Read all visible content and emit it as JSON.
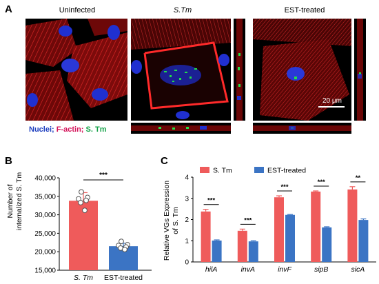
{
  "panel_a": {
    "letter": "A",
    "titles": [
      "Uninfected",
      "S.Tm",
      "EST-treated"
    ],
    "scalebar_label": "20 μm",
    "legend": [
      {
        "text": "Nuclei;",
        "color": "#1f3fbf"
      },
      {
        "text": "F-actin;",
        "color": "#d4145a"
      },
      {
        "text": "S. Tm",
        "color": "#16a34a"
      }
    ]
  },
  "panel_b": {
    "letter": "B"
  },
  "panel_c": {
    "letter": "C"
  },
  "colors": {
    "s_tm": "#ef5b5b",
    "est": "#3b74c4",
    "dot_fill": "#ffffff"
  },
  "chart_data": [
    {
      "type": "bar",
      "ylabel_lines": [
        "Number of",
        "internalized S. Tm"
      ],
      "categories": [
        "S. Tm",
        "EST-treated"
      ],
      "values": [
        33800,
        21500
      ],
      "errors": [
        2200,
        800
      ],
      "ylim": [
        15000,
        40000
      ],
      "yticks": [
        15000,
        20000,
        25000,
        30000,
        35000,
        40000
      ],
      "ytick_labels": [
        "15,000",
        "20,000",
        "25,000",
        "30,000",
        "35,000",
        "40,000"
      ],
      "significance": "***",
      "points": [
        [
          36200,
          34700,
          34300,
          33900,
          33300,
          31200
        ],
        [
          22800,
          21900,
          21700,
          21300,
          21000,
          20600
        ]
      ]
    },
    {
      "type": "bar",
      "ylabel_lines": [
        "Relative VGs Expression",
        "of S. Tm"
      ],
      "categories": [
        "hilA",
        "invA",
        "invF",
        "sipB",
        "sicA"
      ],
      "series": [
        {
          "name": "S. Tm",
          "values": [
            2.38,
            1.47,
            3.05,
            3.32,
            3.42
          ],
          "errors": [
            0.1,
            0.08,
            0.07,
            0.03,
            0.13
          ]
        },
        {
          "name": "EST-treated",
          "values": [
            1.01,
            0.97,
            2.22,
            1.63,
            1.98
          ],
          "errors": [
            0.03,
            0.03,
            0.02,
            0.03,
            0.05
          ]
        }
      ],
      "ylim": [
        0,
        4
      ],
      "yticks": [
        0,
        1,
        2,
        3,
        4
      ],
      "ytick_labels": [
        "0",
        "1",
        "2",
        "3",
        "4"
      ],
      "significance": [
        "***",
        "***",
        "***",
        "***",
        "**"
      ]
    }
  ]
}
